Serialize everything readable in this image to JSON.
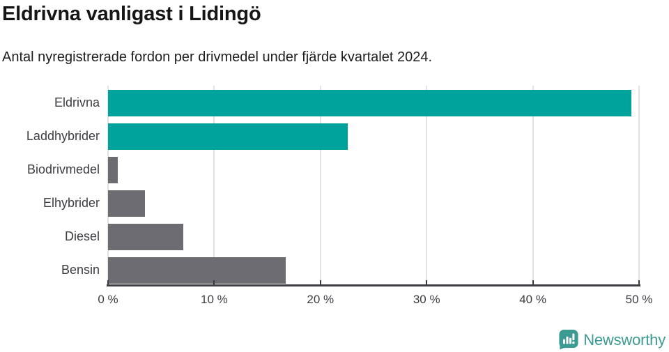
{
  "header": {
    "title": "Eldrivna vanligast i Lidingö",
    "subtitle": "Antal nyregistrerade fordon per drivmedel under fjärde kvartalet 2024."
  },
  "chart_data": {
    "type": "bar",
    "orientation": "horizontal",
    "title": "Eldrivna vanligast i Lidingö",
    "subtitle": "Antal nyregistrerade fordon per drivmedel under fjärde kvartalet 2024.",
    "categories": [
      "Eldrivna",
      "Laddhybrider",
      "Biodrivmedel",
      "Elhybrider",
      "Diesel",
      "Bensin"
    ],
    "values": [
      49.3,
      22.6,
      0.9,
      3.5,
      7.1,
      16.7
    ],
    "unit": "%",
    "bar_colors": [
      "#00A39B",
      "#00A39B",
      "#6C6C71",
      "#6C6C71",
      "#6C6C71",
      "#6C6C71"
    ],
    "highlight_color": "#00A39B",
    "default_color": "#6C6C71",
    "xlabel": "",
    "ylabel": "",
    "xlim": [
      0,
      50
    ],
    "x_ticks": [
      0,
      10,
      20,
      30,
      40,
      50
    ],
    "x_tick_labels": [
      "0 %",
      "10 %",
      "20 %",
      "30 %",
      "40 %",
      "50 %"
    ],
    "grid": "vertical-light",
    "gridline_color": "#E3E3E3",
    "axis_color": "#3C3C42",
    "legend": "none"
  },
  "footer": {
    "brand": "Newsworthy",
    "brand_color": "#3B9B93"
  }
}
